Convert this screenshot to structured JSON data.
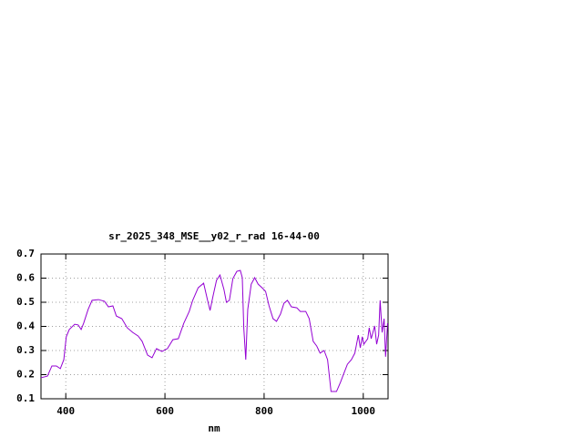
{
  "chart_data": {
    "type": "line",
    "title": "sr_2025_348_MSE__y02_r_rad 16-44-00",
    "xlabel": "nm",
    "x": [
      350,
      363,
      372,
      381,
      389,
      396,
      401,
      407,
      418,
      425,
      431,
      436,
      445,
      453,
      466,
      478,
      486,
      495,
      502,
      513,
      524,
      535,
      546,
      554,
      565,
      574,
      583,
      594,
      605,
      616,
      627,
      638,
      649,
      656,
      667,
      678,
      686,
      691,
      697,
      704,
      711,
      719,
      724,
      730,
      737,
      745,
      752,
      756,
      759,
      763,
      767,
      774,
      781,
      788,
      796,
      803,
      810,
      818,
      825,
      833,
      840,
      847,
      855,
      866,
      873,
      884,
      891,
      899,
      906,
      913,
      921,
      928,
      935,
      946,
      954,
      961,
      968,
      976,
      983,
      990,
      994,
      998,
      1001,
      1009,
      1012,
      1016,
      1023,
      1027,
      1031,
      1034,
      1038,
      1042,
      1045,
      1049
    ],
    "values": [
      0.187,
      0.194,
      0.236,
      0.236,
      0.225,
      0.262,
      0.357,
      0.387,
      0.409,
      0.406,
      0.387,
      0.413,
      0.47,
      0.508,
      0.511,
      0.504,
      0.481,
      0.485,
      0.443,
      0.432,
      0.394,
      0.375,
      0.36,
      0.338,
      0.281,
      0.27,
      0.308,
      0.296,
      0.308,
      0.345,
      0.349,
      0.413,
      0.462,
      0.508,
      0.56,
      0.579,
      0.508,
      0.466,
      0.526,
      0.591,
      0.613,
      0.553,
      0.5,
      0.508,
      0.598,
      0.628,
      0.632,
      0.602,
      0.394,
      0.262,
      0.47,
      0.575,
      0.602,
      0.575,
      0.56,
      0.545,
      0.485,
      0.432,
      0.421,
      0.451,
      0.496,
      0.508,
      0.481,
      0.477,
      0.462,
      0.462,
      0.432,
      0.338,
      0.319,
      0.289,
      0.3,
      0.262,
      0.13,
      0.13,
      0.168,
      0.206,
      0.243,
      0.262,
      0.289,
      0.364,
      0.311,
      0.357,
      0.326,
      0.349,
      0.394,
      0.349,
      0.402,
      0.326,
      0.364,
      0.508,
      0.375,
      0.432,
      0.274,
      0.413
    ],
    "color": "#9400d3",
    "xlim": [
      350,
      1050
    ],
    "xticks": [
      400,
      600,
      800,
      1000
    ],
    "ylim": [
      0.1,
      0.7
    ],
    "yticks": [
      0.1,
      0.2,
      0.3,
      0.4,
      0.5,
      0.6,
      0.7
    ],
    "grid": true
  }
}
